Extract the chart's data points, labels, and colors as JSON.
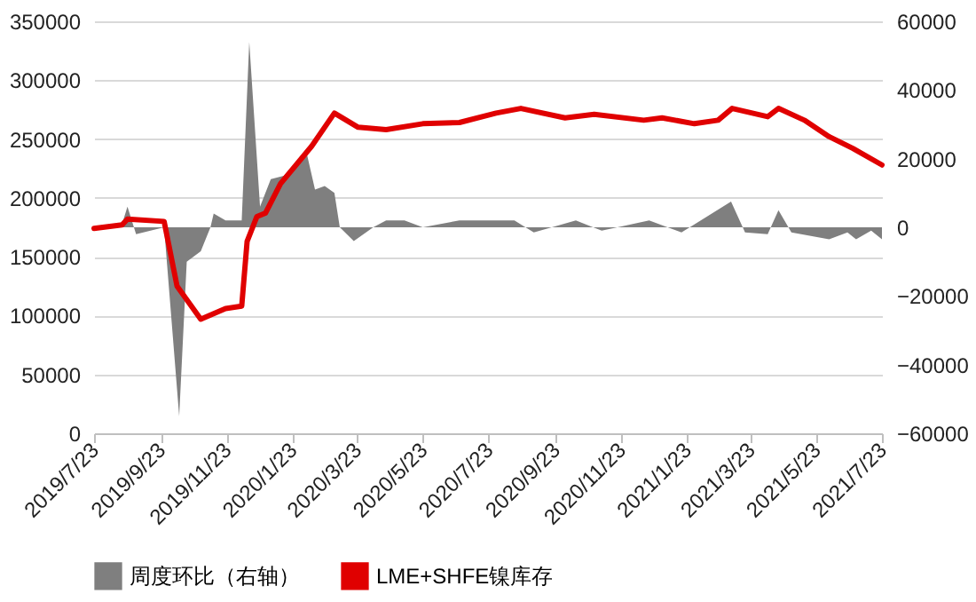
{
  "chart_data": {
    "type": "line",
    "xlim": [
      "2019-07-23",
      "2021-07-23"
    ],
    "xticks": [
      {
        "value": "2019-07-23",
        "label": "2019/7/23"
      },
      {
        "value": "2019-09-23",
        "label": "2019/9/23"
      },
      {
        "value": "2019-11-23",
        "label": "2019/11/23"
      },
      {
        "value": "2020-01-23",
        "label": "2020/1/23"
      },
      {
        "value": "2020-03-23",
        "label": "2020/3/23"
      },
      {
        "value": "2020-05-23",
        "label": "2020/5/23"
      },
      {
        "value": "2020-07-23",
        "label": "2020/7/23"
      },
      {
        "value": "2020-09-23",
        "label": "2020/9/23"
      },
      {
        "value": "2020-11-23",
        "label": "2020/11/23"
      },
      {
        "value": "2021-01-23",
        "label": "2021/1/23"
      },
      {
        "value": "2021-03-23",
        "label": "2021/3/23"
      },
      {
        "value": "2021-05-23",
        "label": "2021/5/23"
      },
      {
        "value": "2021-07-23",
        "label": "2021/7/23"
      }
    ],
    "ylim": [
      0,
      350000
    ],
    "yticks": [
      0,
      50000,
      100000,
      150000,
      200000,
      250000,
      300000,
      350000
    ],
    "y2lim": [
      -60000,
      60000
    ],
    "y2ticks": [
      -60000,
      -40000,
      -20000,
      0,
      20000,
      40000,
      60000
    ],
    "grid": "y",
    "legend": "bottom",
    "series": [
      {
        "name": "周度环比（右轴）",
        "type": "area",
        "axis": "y2",
        "color": "#7f7f7f",
        "x": [
          "2019-07-23",
          "2019-08-18",
          "2019-08-23",
          "2019-08-31",
          "2019-09-26",
          "2019-10-10",
          "2019-10-17",
          "2019-10-30",
          "2019-11-08",
          "2019-11-11",
          "2019-11-22",
          "2019-12-07",
          "2019-12-14",
          "2019-12-24",
          "2020-01-03",
          "2020-01-15",
          "2020-02-05",
          "2020-02-13",
          "2020-02-22",
          "2020-03-02",
          "2020-03-07",
          "2020-03-20",
          "2020-04-07",
          "2020-04-19",
          "2020-05-06",
          "2020-05-23",
          "2020-06-26",
          "2020-07-18",
          "2020-07-25",
          "2020-08-16",
          "2020-09-03",
          "2020-10-12",
          "2020-11-05",
          "2020-12-19",
          "2021-01-18",
          "2021-03-05",
          "2021-03-18",
          "2021-04-08",
          "2021-04-18",
          "2021-04-30",
          "2021-06-04",
          "2021-06-21",
          "2021-06-29",
          "2021-07-13",
          "2021-07-23"
        ],
        "values": [
          0,
          1000,
          6000,
          -2000,
          0,
          -55000,
          -10000,
          -7000,
          0,
          4000,
          2000,
          2000,
          54000,
          6000,
          14000,
          15000,
          22000,
          11000,
          12000,
          10000,
          0,
          -4000,
          0,
          2000,
          2000,
          0,
          2000,
          2000,
          2000,
          2000,
          -1500,
          2000,
          -1000,
          2000,
          -1500,
          7500,
          -1500,
          -2000,
          5000,
          -1500,
          -3500,
          -1500,
          -3500,
          -1000,
          -3500
        ]
      },
      {
        "name": "LME+SHFE镍库存",
        "color": "#e00000",
        "x": [
          "2019-07-23",
          "2019-08-18",
          "2019-08-23",
          "2019-09-26",
          "2019-10-08",
          "2019-10-30",
          "2019-11-22",
          "2019-12-07",
          "2019-12-12",
          "2019-12-21",
          "2019-12-29",
          "2020-01-12",
          "2020-02-10",
          "2020-03-02",
          "2020-03-24",
          "2020-04-19",
          "2020-05-23",
          "2020-06-26",
          "2020-07-30",
          "2020-08-22",
          "2020-10-02",
          "2020-10-29",
          "2020-12-14",
          "2020-12-31",
          "2021-01-30",
          "2021-02-21",
          "2021-03-06",
          "2021-04-08",
          "2021-04-18",
          "2021-05-12",
          "2021-06-04",
          "2021-06-26",
          "2021-07-23"
        ],
        "values": [
          174000,
          177000,
          182000,
          180000,
          125000,
          97000,
          106000,
          108000,
          163000,
          184000,
          187000,
          212000,
          244000,
          272000,
          260000,
          258000,
          263000,
          264000,
          272000,
          276000,
          268000,
          271000,
          266000,
          268000,
          263000,
          266000,
          276000,
          269000,
          276000,
          266000,
          252000,
          242000,
          228000
        ]
      }
    ]
  }
}
